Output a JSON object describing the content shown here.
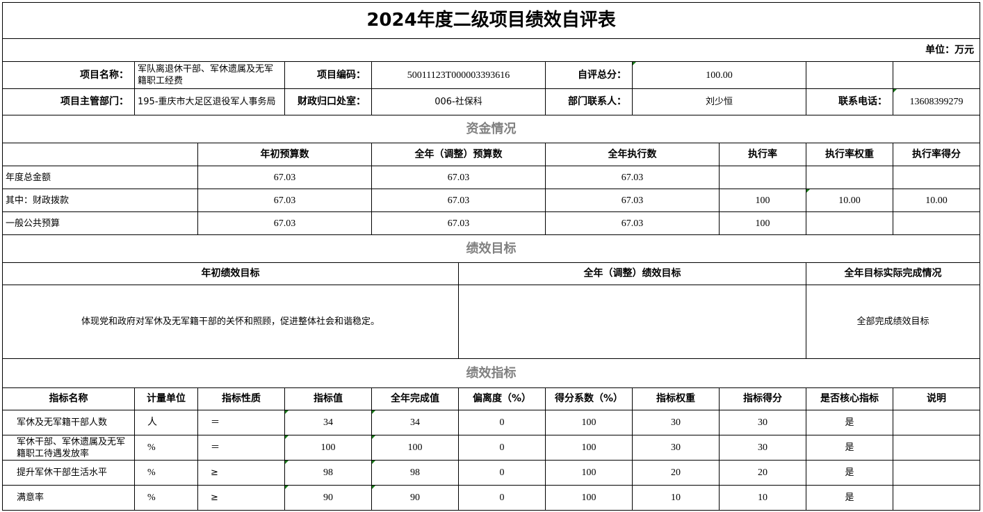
{
  "title": "2024年度二级项目绩效自评表",
  "unit": "单位：万元",
  "info": {
    "name_label": "项目名称：",
    "name": "军队离退休干部、军休遗属及无军籍职工经费",
    "code_label": "项目编码：",
    "code": "50011123T000003393616",
    "score_label": "自评总分：",
    "score": "100.00",
    "dept_label": "项目主管部门：",
    "dept": "195-重庆市大足区退役军人事务局",
    "office_label": "财政归口处室：",
    "office": "006-社保科",
    "contact_label": "部门联系人：",
    "contact": "刘少恒",
    "phone_label": "联系电话：",
    "phone": "13608399279"
  },
  "funds": {
    "section": "资金情况",
    "headers": [
      "年初预算数",
      "全年（调整）预算数",
      "全年执行数",
      "执行率",
      "执行率权重",
      "执行率得分"
    ],
    "rows": [
      {
        "label": "年度总金额",
        "values": [
          "67.03",
          "67.03",
          "67.03",
          "",
          "",
          ""
        ]
      },
      {
        "label": "其中：财政拨款",
        "values": [
          "67.03",
          "67.03",
          "67.03",
          "100",
          "10.00",
          "10.00"
        ]
      },
      {
        "label": "一般公共预算",
        "values": [
          "67.03",
          "67.03",
          "67.03",
          "100",
          "",
          ""
        ]
      }
    ]
  },
  "goals": {
    "section": "绩效目标",
    "headers": [
      "年初绩效目标",
      "全年（调整）绩效目标",
      "全年目标实际完成情况"
    ],
    "values": [
      "体现党和政府对军休及无军籍干部的关怀和照顾，促进整体社会和谐稳定。",
      "",
      "全部完成绩效目标"
    ]
  },
  "indicators": {
    "section": "绩效指标",
    "headers": [
      "指标名称",
      "计量单位",
      "指标性质",
      "指标值",
      "全年完成值",
      "偏离度（%）",
      "得分系数（%）",
      "指标权重",
      "指标得分",
      "是否核心指标",
      "说明"
    ],
    "rows": [
      [
        "军休及无军籍干部人数",
        "人",
        "＝",
        "34",
        "34",
        "0",
        "100",
        "30",
        "30",
        "是",
        ""
      ],
      [
        "军休干部、军休遗属及无军籍职工待遇发放率",
        "%",
        "＝",
        "100",
        "100",
        "0",
        "100",
        "30",
        "30",
        "是",
        ""
      ],
      [
        "提升军休干部生活水平",
        "%",
        "≥",
        "98",
        "98",
        "0",
        "100",
        "20",
        "20",
        "是",
        ""
      ],
      [
        "满意率",
        "%",
        "≥",
        "90",
        "90",
        "0",
        "100",
        "10",
        "10",
        "是",
        ""
      ]
    ]
  }
}
